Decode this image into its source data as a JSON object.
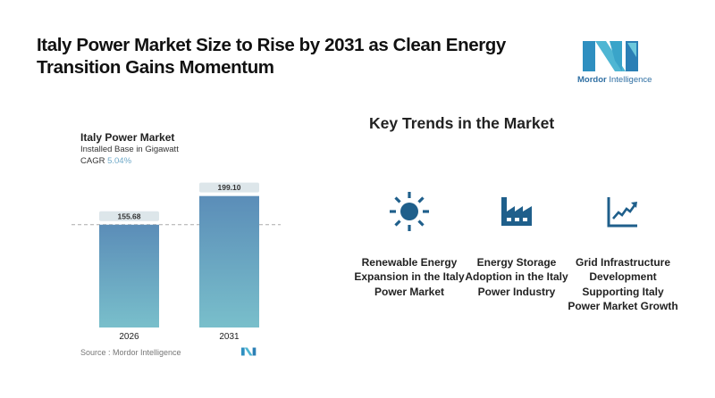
{
  "header": {
    "title": "Italy Power Market Size to Rise by 2031 as Clean Energy Transition Gains Momentum",
    "logo_brand_bold": "Mordor",
    "logo_brand_light": " Intelligence"
  },
  "chart_panel": {
    "title": "Italy Power Market",
    "subtitle": "Installed Base in Gigawatt",
    "cagr_label": "CAGR",
    "cagr_value": "5.04%",
    "source": "Source :  Mordor Intelligence"
  },
  "chart_data": {
    "type": "bar",
    "title": "Italy Power Market",
    "subtitle": "Installed Base in Gigawatt",
    "categories": [
      "2026",
      "2031"
    ],
    "values": [
      155.68,
      199.1
    ],
    "value_labels": [
      "155.68",
      "199.10"
    ],
    "xlabel": "",
    "ylabel": "Installed Base in Gigawatt",
    "ylim": [
      0,
      210
    ],
    "reference_line": 155.68,
    "grid": false,
    "colors": {
      "bar_top": "#5b8db8",
      "bar_bottom": "#79bfcb",
      "label_bg": "#dde6ea"
    }
  },
  "trends": {
    "title": "Key Trends in the Market",
    "icon_color": "#1f5f8b",
    "items": [
      {
        "icon": "sun-icon",
        "label": "Renewable Energy Expansion in the Italy Power Market"
      },
      {
        "icon": "factory-icon",
        "label": "Energy Storage Adoption in the Italy Power Industry"
      },
      {
        "icon": "growth-chart-icon",
        "label": "Grid Infrastructure Development Supporting Italy Power Market Growth"
      }
    ]
  }
}
